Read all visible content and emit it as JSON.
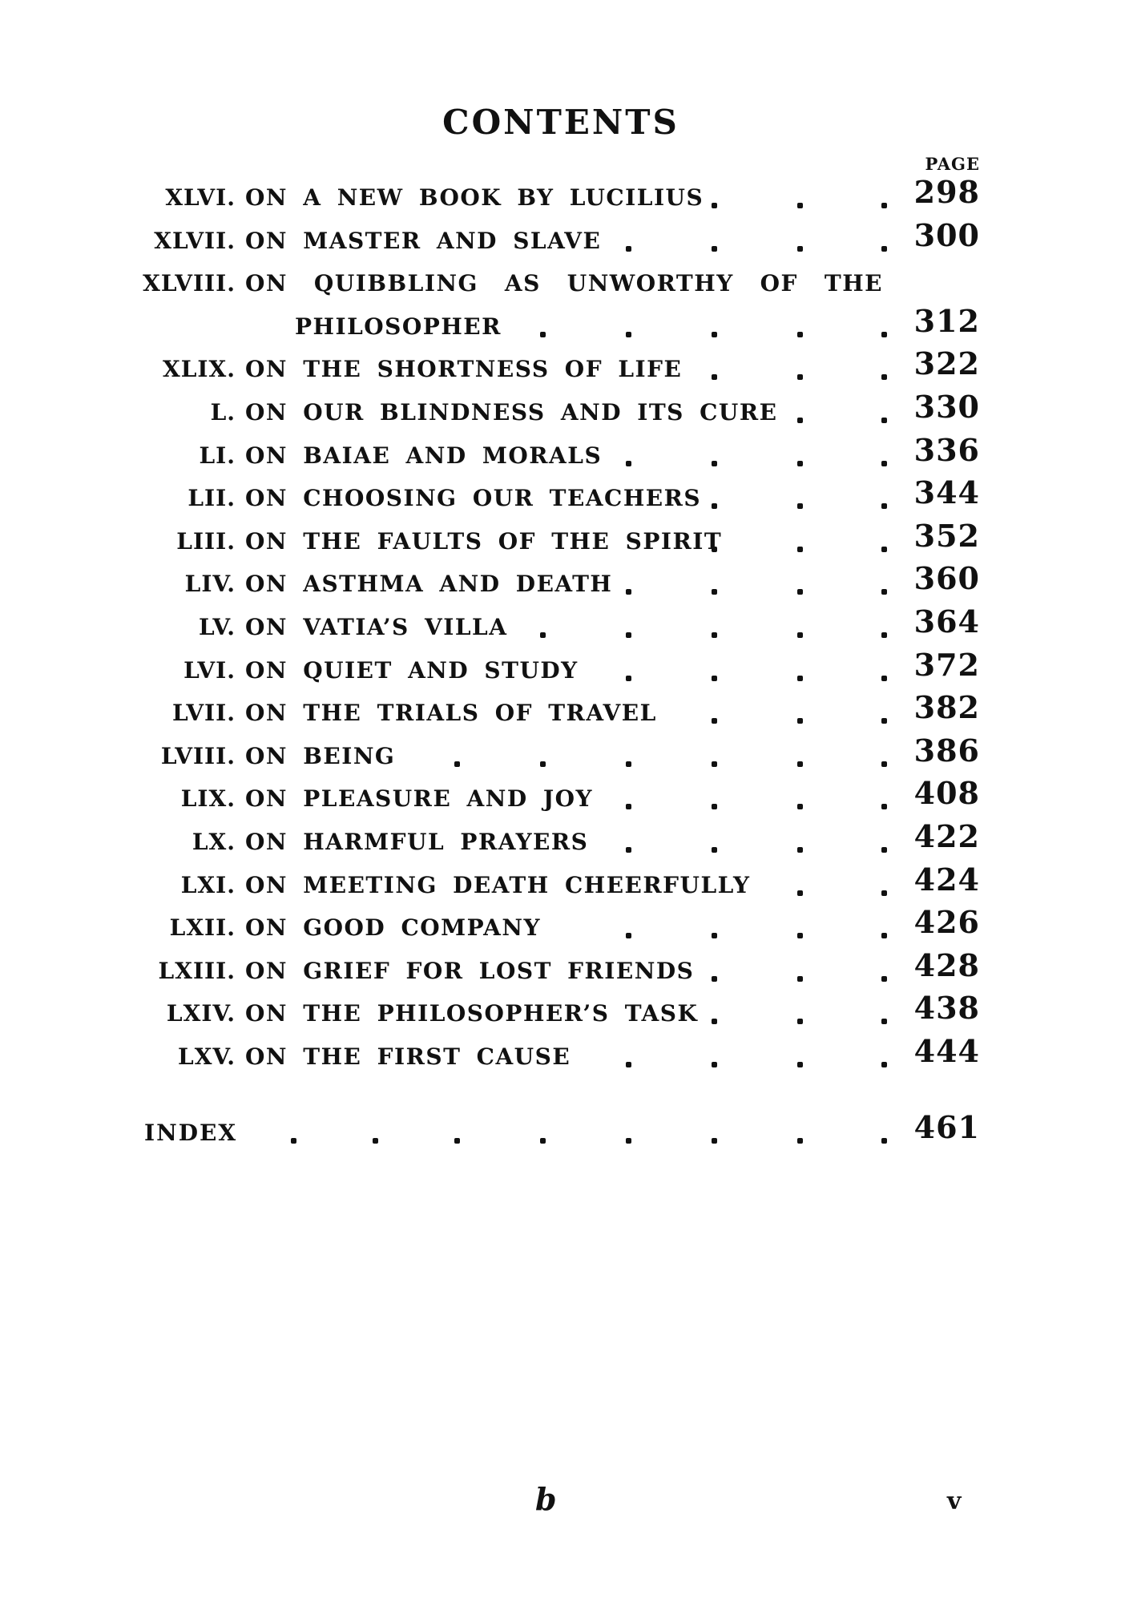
{
  "page": {
    "title": "CONTENTS",
    "page_column_label": "PAGE",
    "footer": {
      "signature_mark": "b",
      "folio": "v"
    }
  },
  "toc": {
    "entries": [
      {
        "numeral": "XLVI.",
        "title": "ON A NEW BOOK BY LUCILIUS",
        "dots": 3,
        "page": "298"
      },
      {
        "numeral": "XLVII.",
        "title": "ON MASTER AND SLAVE",
        "dots": 4,
        "page": "300"
      },
      {
        "numeral": "XLVIII.",
        "title": "ON QUIBBLING AS UNWORTHY OF THE",
        "title_line2": "PHILOSOPHER",
        "dots": 5,
        "page": "312"
      },
      {
        "numeral": "XLIX.",
        "title": "ON THE SHORTNESS OF LIFE",
        "dots": 3,
        "page": "322"
      },
      {
        "numeral": "L.",
        "title": "ON OUR BLINDNESS AND ITS CURE",
        "dots": 2,
        "page": "330"
      },
      {
        "numeral": "LI.",
        "title": "ON BAIAE AND MORALS",
        "dots": 4,
        "page": "336"
      },
      {
        "numeral": "LII.",
        "title": "ON CHOOSING OUR TEACHERS",
        "dots": 3,
        "page": "344"
      },
      {
        "numeral": "LIII.",
        "title": "ON THE FAULTS OF THE SPIRIT",
        "dots": 3,
        "page": "352"
      },
      {
        "numeral": "LIV.",
        "title": "ON ASTHMA AND DEATH",
        "dots": 4,
        "page": "360"
      },
      {
        "numeral": "LV.",
        "title": "ON VATIA’S VILLA",
        "dots": 5,
        "page": "364"
      },
      {
        "numeral": "LVI.",
        "title": "ON QUIET AND STUDY",
        "dots": 4,
        "page": "372"
      },
      {
        "numeral": "LVII.",
        "title": "ON THE TRIALS OF TRAVEL",
        "dots": 3,
        "page": "382"
      },
      {
        "numeral": "LVIII.",
        "title": "ON BEING",
        "dots": 6,
        "page": "386"
      },
      {
        "numeral": "LIX.",
        "title": "ON PLEASURE AND JOY",
        "dots": 4,
        "page": "408"
      },
      {
        "numeral": "LX.",
        "title": "ON HARMFUL PRAYERS",
        "dots": 4,
        "page": "422"
      },
      {
        "numeral": "LXI.",
        "title": "ON MEETING DEATH CHEERFULLY",
        "dots": 2,
        "page": "424"
      },
      {
        "numeral": "LXII.",
        "title": "ON GOOD COMPANY",
        "dots": 4,
        "page": "426"
      },
      {
        "numeral": "LXIII.",
        "title": "ON GRIEF FOR LOST FRIENDS",
        "dots": 3,
        "page": "428"
      },
      {
        "numeral": "LXIV.",
        "title": "ON THE PHILOSOPHER’S TASK",
        "dots": 3,
        "page": "438"
      },
      {
        "numeral": "LXV.",
        "title": "ON THE FIRST CAUSE",
        "dots": 4,
        "page": "444"
      }
    ],
    "index_entry": {
      "label": "INDEX",
      "dots": 8,
      "page": "461"
    }
  },
  "colors": {
    "ink": "#111111",
    "paper": "#ffffff"
  }
}
